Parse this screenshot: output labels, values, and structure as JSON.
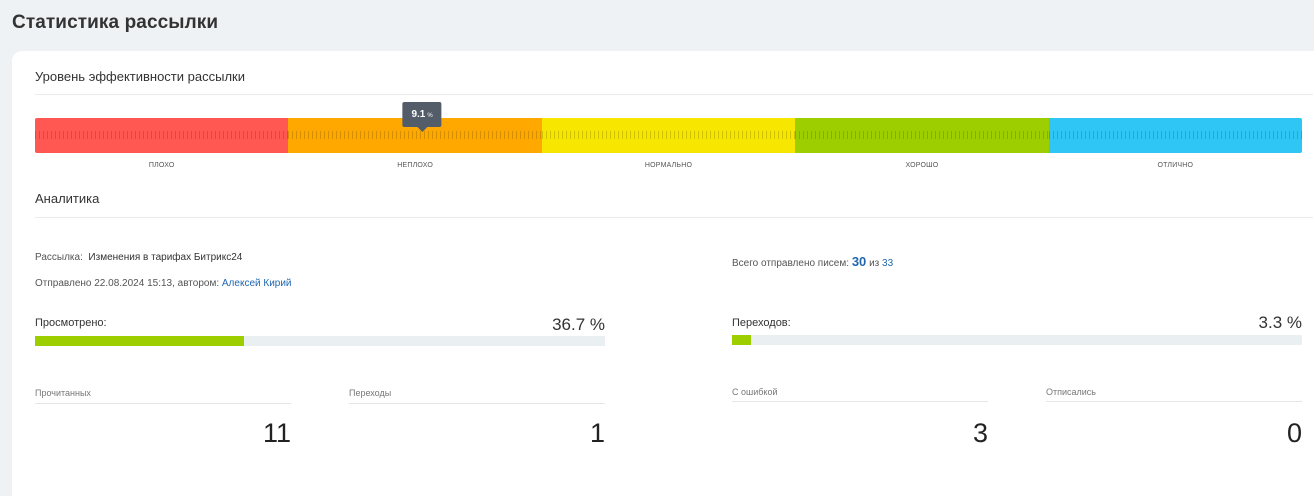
{
  "page": {
    "title": "Статистика рассылки"
  },
  "efficiency": {
    "title": "Уровень эффективности рассылки",
    "value": "9.1",
    "unit": "%",
    "value_fraction": 0.3055,
    "segments": [
      {
        "label": "плохо",
        "color": "#ff5752"
      },
      {
        "label": "неплохо",
        "color": "#ffa900"
      },
      {
        "label": "нормально",
        "color": "#f7e700"
      },
      {
        "label": "хорошо",
        "color": "#9dcf00"
      },
      {
        "label": "отлично",
        "color": "#2fc6f6"
      }
    ]
  },
  "analytics": {
    "title": "Аналитика",
    "mailing_label": "Рассылка:",
    "mailing_name": "Изменения в тарифах Битрикс24",
    "sent_text": "Отправлено 22.08.2024 15:13, автором:",
    "author": "Алексей Кирий",
    "total_label": "Всего отправлено писем:",
    "total_sent": "30",
    "of_label": "из",
    "total_all": "33",
    "viewed": {
      "label": "Просмотрено:",
      "percent": "36.7 %",
      "fraction": 0.367
    },
    "clicks": {
      "label": "Переходов:",
      "percent": "3.3 %",
      "fraction": 0.033
    },
    "stats": [
      {
        "label": "Прочитанных",
        "value": "11"
      },
      {
        "label": "Переходы",
        "value": "1"
      },
      {
        "label": "С ошибкой",
        "value": "3"
      },
      {
        "label": "Отписались",
        "value": "0"
      }
    ],
    "accent_color": "#9dcf00",
    "link_color": "#2067b0"
  }
}
